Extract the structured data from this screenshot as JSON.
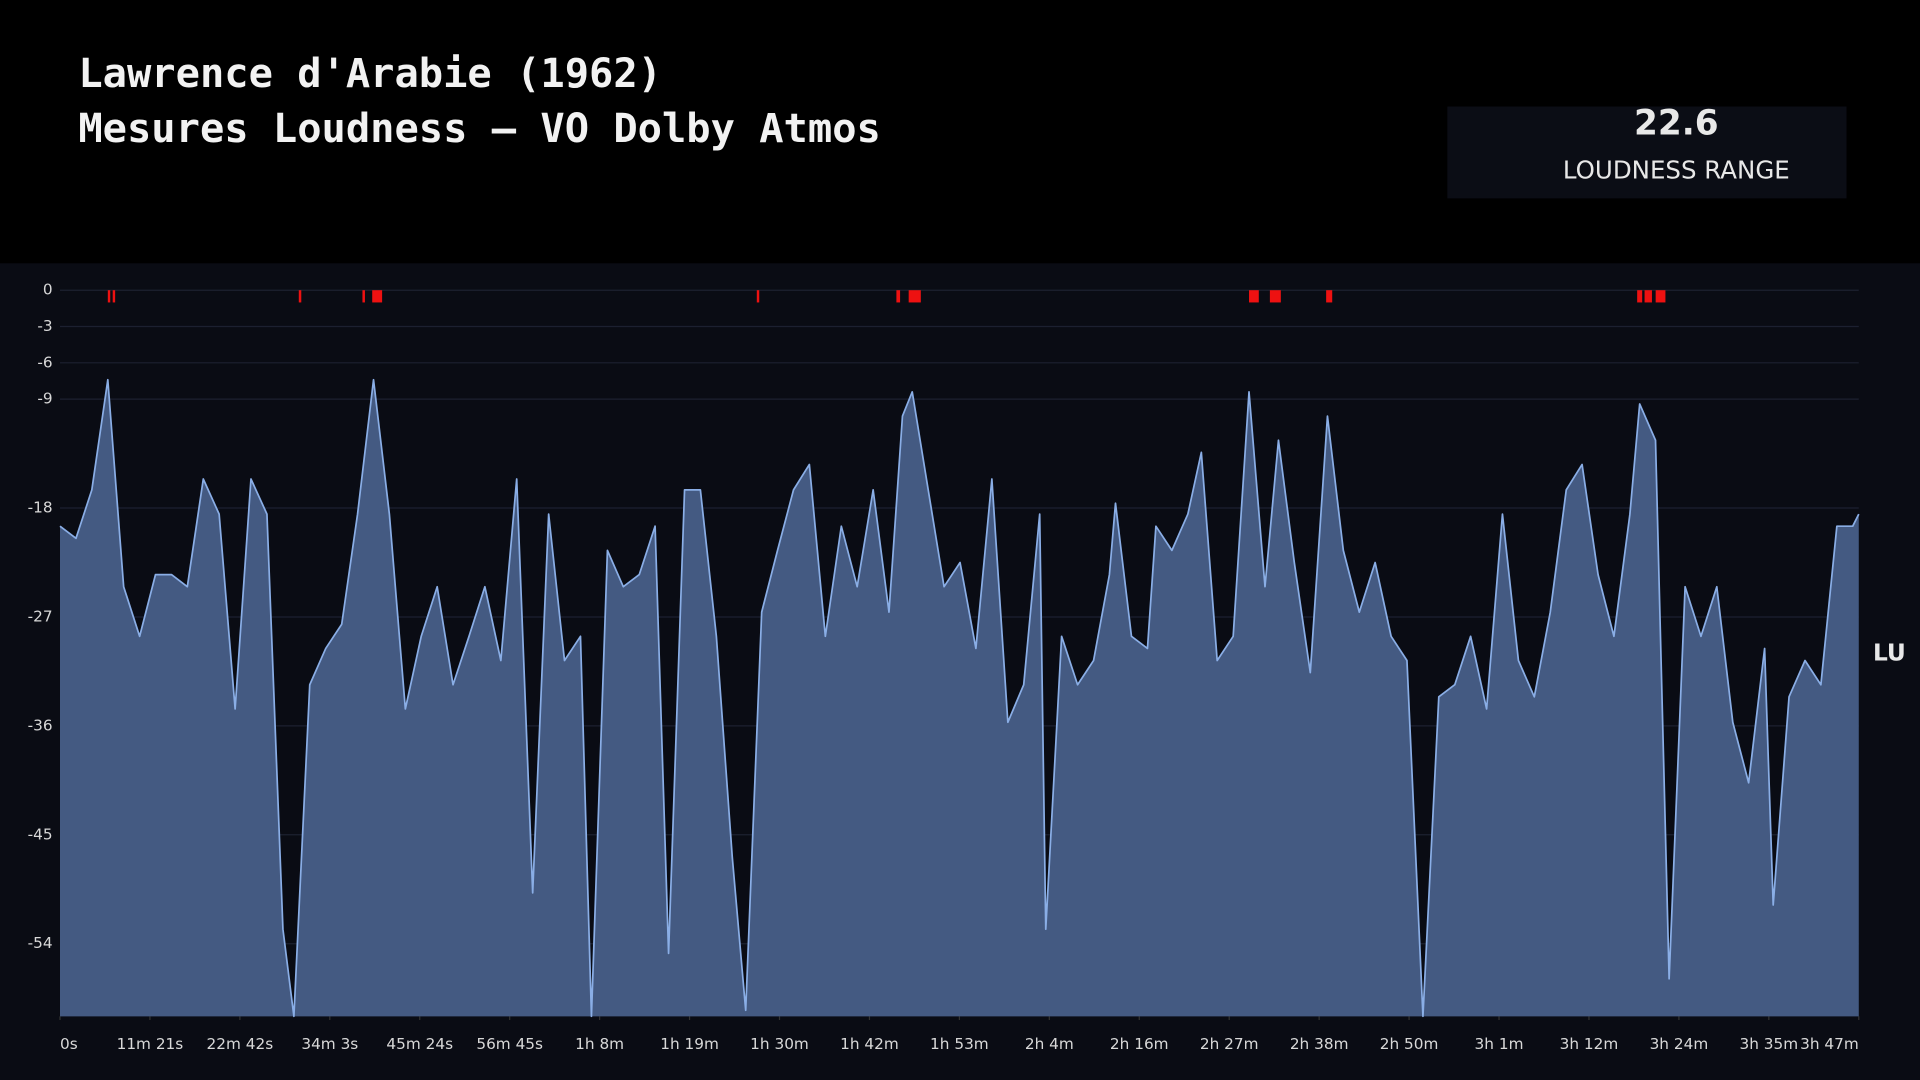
{
  "chart_data": {
    "type": "area",
    "title": "Lawrence d'Arabie (1962)",
    "subtitle": "Mesures Loudness – VO Dolby Atmos",
    "y_label": "LU",
    "loudness_range": {
      "value": 22.6,
      "label": "LOUDNESS RANGE"
    },
    "color": "#8aaee6",
    "fill": "#445a82",
    "marker_color": "#ee1111",
    "grid": true,
    "xlim": [
      0,
      13620
    ],
    "ylim": [
      -60,
      0
    ],
    "yticks": [
      0,
      -3,
      -6,
      -9,
      -18,
      -27,
      -36,
      -45,
      -54
    ],
    "xticks": [
      {
        "value": 0,
        "label": "0s"
      },
      {
        "value": 681,
        "label": "11m 21s"
      },
      {
        "value": 1362,
        "label": "22m 42s"
      },
      {
        "value": 2043,
        "label": "34m 3s"
      },
      {
        "value": 2724,
        "label": "45m 24s"
      },
      {
        "value": 3405,
        "label": "56m 45s"
      },
      {
        "value": 4086,
        "label": "1h 8m"
      },
      {
        "value": 4767,
        "label": "1h 19m"
      },
      {
        "value": 5448,
        "label": "1h 30m"
      },
      {
        "value": 6129,
        "label": "1h 42m"
      },
      {
        "value": 6810,
        "label": "1h 53m"
      },
      {
        "value": 7491,
        "label": "2h 4m"
      },
      {
        "value": 8172,
        "label": "2h 16m"
      },
      {
        "value": 8853,
        "label": "2h 27m"
      },
      {
        "value": 9534,
        "label": "2h 38m"
      },
      {
        "value": 10215,
        "label": "2h 50m"
      },
      {
        "value": 10896,
        "label": "3h 1m"
      },
      {
        "value": 11577,
        "label": "3h 12m"
      },
      {
        "value": 12258,
        "label": "3h 24m"
      },
      {
        "value": 12939,
        "label": "3h 35m"
      },
      {
        "value": 13620,
        "label": "3h 47m"
      }
    ],
    "x": [
      0,
      121,
      241,
      362,
      482,
      603,
      723,
      844,
      964,
      1085,
      1205,
      1326,
      1446,
      1567,
      1688,
      1771,
      1891,
      2012,
      2133,
      2253,
      2374,
      2494,
      2615,
      2735,
      2856,
      2976,
      3097,
      3217,
      3338,
      3458,
      3579,
      3700,
      3820,
      3941,
      4024,
      4145,
      4265,
      4386,
      4506,
      4608,
      4729,
      4849,
      4970,
      5090,
      5192,
      5313,
      5433,
      5554,
      5674,
      5795,
      5916,
      6036,
      6157,
      6277,
      6379,
      6453,
      6574,
      6694,
      6815,
      6935,
      7056,
      7177,
      7297,
      7418,
      7464,
      7584,
      7705,
      7826,
      7946,
      7992,
      8113,
      8234,
      8298,
      8419,
      8540,
      8642,
      8762,
      8883,
      9003,
      9124,
      9226,
      9346,
      9467,
      9597,
      9717,
      9838,
      9958,
      10079,
      10199,
      10320,
      10440,
      10561,
      10681,
      10802,
      10922,
      11043,
      11163,
      11284,
      11405,
      11525,
      11646,
      11766,
      11887,
      11961,
      12081,
      12184,
      12305,
      12425,
      12545,
      12666,
      12786,
      12907,
      12972,
      13092,
      13213,
      13333,
      13454,
      13574,
      13620
    ],
    "values": [
      -19.5,
      -20.5,
      -16.5,
      -7.4,
      -24.5,
      -28.6,
      -23.5,
      -23.5,
      -24.5,
      -15.6,
      -18.5,
      -34.6,
      -15.6,
      -18.5,
      -52.8,
      -60,
      -32.6,
      -29.6,
      -27.6,
      -18.5,
      -7.4,
      -18.5,
      -34.6,
      -28.6,
      -24.5,
      -32.6,
      -28.6,
      -24.5,
      -30.6,
      -15.6,
      -49.8,
      -18.5,
      -30.6,
      -28.6,
      -60,
      -21.5,
      -24.5,
      -23.5,
      -19.5,
      -54.8,
      -16.5,
      -16.5,
      -28.6,
      -46.8,
      -59.5,
      -26.6,
      -21.5,
      -16.5,
      -14.4,
      -28.6,
      -19.5,
      -24.5,
      -16.5,
      -26.6,
      -10.4,
      -8.4,
      -16.5,
      -24.5,
      -22.5,
      -29.6,
      -15.6,
      -35.7,
      -32.6,
      -18.5,
      -52.8,
      -28.6,
      -32.6,
      -30.6,
      -23.5,
      -17.6,
      -28.6,
      -29.6,
      -19.5,
      -21.5,
      -18.5,
      -13.4,
      -30.6,
      -28.6,
      -8.4,
      -24.5,
      -12.4,
      -22.5,
      -31.6,
      -10.4,
      -21.5,
      -26.6,
      -22.5,
      -28.6,
      -30.6,
      -60,
      -33.6,
      -32.6,
      -28.6,
      -34.6,
      -18.5,
      -30.6,
      -33.6,
      -26.6,
      -16.5,
      -14.4,
      -23.5,
      -28.6,
      -18.5,
      -9.4,
      -12.4,
      -56.9,
      -24.5,
      -28.6,
      -24.5,
      -35.7,
      -40.7,
      -29.6,
      -50.8,
      -33.6,
      -30.6,
      -32.6,
      -19.5,
      -19.5,
      -18.5
    ],
    "overs": [
      [
        362,
        380
      ],
      [
        399,
        417
      ],
      [
        1808,
        1827
      ],
      [
        2290,
        2309
      ],
      [
        2364,
        2439
      ],
      [
        5276,
        5294
      ],
      [
        6333,
        6361
      ],
      [
        6426,
        6518
      ],
      [
        9003,
        9077
      ],
      [
        9161,
        9244
      ],
      [
        9587,
        9633
      ],
      [
        11942,
        11980
      ],
      [
        11998,
        12054
      ],
      [
        12082,
        12156
      ]
    ]
  }
}
